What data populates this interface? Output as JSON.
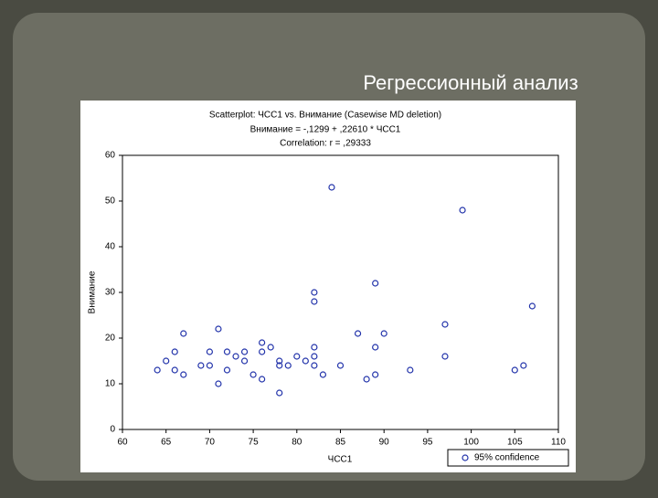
{
  "slide_title": "Регрессионный анализ",
  "chart_data": {
    "type": "scatter",
    "title": "Scatterplot: ЧСС1    vs. Внимание (Casewise MD deletion)",
    "subtitle": "Внимание = -,1299 + ,22610 * ЧСС1",
    "annotation": "Correlation: r = ,29333",
    "x_label": "ЧСС1",
    "y_label": "Внимание",
    "legend": "bottom-right",
    "series": [
      {
        "name": "95% confidence",
        "color": "#2233aa",
        "x": [
          64,
          65,
          66,
          66,
          67,
          67,
          69,
          70,
          70,
          71,
          71,
          72,
          72,
          73,
          74,
          74,
          75,
          76,
          76,
          76,
          77,
          78,
          78,
          78,
          79,
          80,
          81,
          82,
          82,
          82,
          82,
          82,
          83,
          84,
          85,
          87,
          88,
          89,
          89,
          89,
          90,
          93,
          97,
          97,
          99,
          105,
          106,
          107
        ],
        "values": [
          13,
          15,
          17,
          13,
          21,
          12,
          14,
          17,
          14,
          22,
          10,
          17,
          13,
          16,
          17,
          15,
          12,
          19,
          17,
          11,
          18,
          15,
          14,
          8,
          14,
          16,
          15,
          30,
          28,
          18,
          16,
          14,
          12,
          53,
          14,
          21,
          11,
          32,
          18,
          12,
          21,
          13,
          23,
          16,
          48,
          13,
          14,
          27
        ]
      }
    ],
    "xlim": [
      60,
      110
    ],
    "xticks": [
      60,
      65,
      70,
      75,
      80,
      85,
      90,
      95,
      100,
      105,
      110
    ],
    "ylim": [
      0,
      60
    ],
    "yticks": [
      0,
      10,
      20,
      30,
      40,
      50,
      60
    ]
  }
}
